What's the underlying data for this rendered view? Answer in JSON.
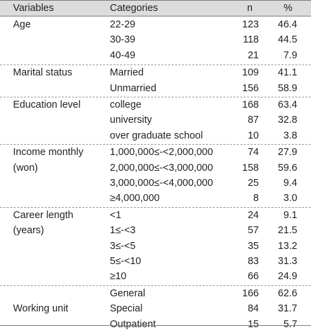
{
  "header": {
    "variables": "Variables",
    "categories": "Categories",
    "n": "n",
    "pct": "%"
  },
  "groups": [
    {
      "variable": [
        "Age"
      ],
      "rows": [
        {
          "category": "22-29",
          "n": "123",
          "pct": "46.4"
        },
        {
          "category": "30-39",
          "n": "118",
          "pct": "44.5"
        },
        {
          "category": "40-49",
          "n": "21",
          "pct": "7.9"
        }
      ]
    },
    {
      "variable": [
        "Marital status"
      ],
      "rows": [
        {
          "category": "Married",
          "n": "109",
          "pct": "41.1"
        },
        {
          "category": "Unmarried",
          "n": "156",
          "pct": "58.9"
        }
      ]
    },
    {
      "variable": [
        "Education level"
      ],
      "rows": [
        {
          "category": "college",
          "n": "168",
          "pct": "63.4"
        },
        {
          "category": "university",
          "n": "87",
          "pct": "32.8"
        },
        {
          "category": "over graduate school",
          "n": "10",
          "pct": "3.8"
        }
      ]
    },
    {
      "variable": [
        "Income monthly",
        "(won)"
      ],
      "rows": [
        {
          "category": "1,000,000≤-<2,000,000",
          "n": "74",
          "pct": "27.9"
        },
        {
          "category": "2,000,000≤-<3,000,000",
          "n": "158",
          "pct": "59.6"
        },
        {
          "category": "3,000,000≤-<4,000,000",
          "n": "25",
          "pct": "9.4"
        },
        {
          "category": "≥4,000,000",
          "n": "8",
          "pct": "3.0"
        }
      ]
    },
    {
      "variable": [
        "Career length",
        "(years)"
      ],
      "rows": [
        {
          "category": "<1",
          "n": "24",
          "pct": "9.1"
        },
        {
          "category": "1≤-<3",
          "n": "57",
          "pct": "21.5"
        },
        {
          "category": "3≤-<5",
          "n": "35",
          "pct": "13.2"
        },
        {
          "category": "5≤-<10",
          "n": "83",
          "pct": "31.3"
        },
        {
          "category": "≥10",
          "n": "66",
          "pct": "24.9"
        }
      ]
    },
    {
      "variable": [
        "",
        "Working unit"
      ],
      "rows": [
        {
          "category": "General",
          "n": "166",
          "pct": "62.6"
        },
        {
          "category": "Special",
          "n": "84",
          "pct": "31.7"
        },
        {
          "category": "Outpatient",
          "n": "15",
          "pct": "5.7"
        }
      ]
    }
  ]
}
